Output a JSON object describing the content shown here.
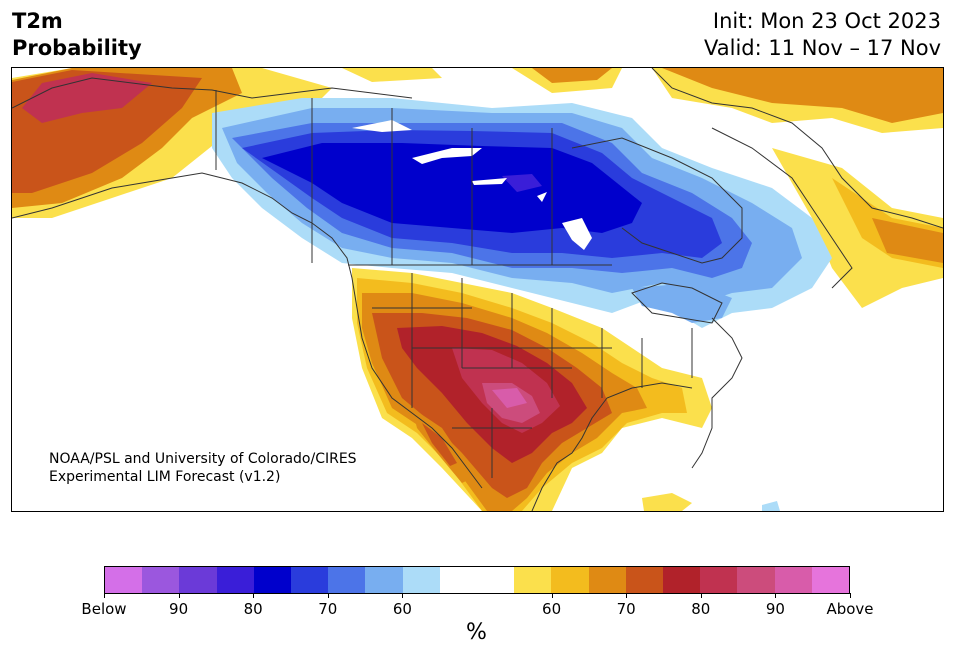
{
  "header": {
    "title_line1": "T2m",
    "title_line2": "Probability",
    "init": "Init: Mon 23 Oct 2023",
    "valid": "Valid: 11 Nov – 17 Nov"
  },
  "map": {
    "credit_line1": "NOAA/PSL and University of Colorado/CIRES",
    "credit_line2": "Experimental LIM Forecast (v1.2)"
  },
  "colorbar": {
    "colors": [
      "#d46fe8",
      "#9b57de",
      "#6b3ad8",
      "#3a1ed8",
      "#0000cc",
      "#2a3cdc",
      "#4c74e8",
      "#78aef0",
      "#acdcf8",
      "#ffffff",
      "#ffffff",
      "#fbe04c",
      "#f3bc1e",
      "#df8a14",
      "#c9541a",
      "#b1222a",
      "#c03250",
      "#cc4c7c",
      "#d85caa",
      "#e674dc"
    ],
    "ticks": [
      "Below",
      "90",
      "80",
      "70",
      "60",
      "60",
      "70",
      "80",
      "90",
      "Above"
    ],
    "unit": "%"
  }
}
